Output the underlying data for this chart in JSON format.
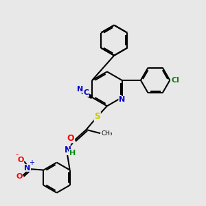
{
  "bg_color": "#e8e8e8",
  "bond_color": "#000000",
  "bond_width": 1.5,
  "atom_colors": {
    "N": "#0000cc",
    "O": "#ff0000",
    "S": "#cccc00",
    "Cl": "#008800",
    "C": "#0000cc",
    "H": "#008800"
  }
}
